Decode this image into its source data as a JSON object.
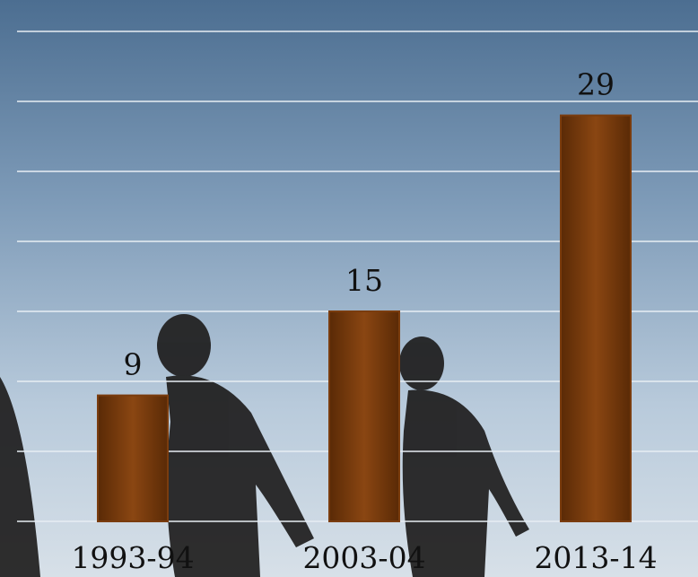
{
  "chart_data": {
    "type": "bar",
    "categories": [
      "1993-94",
      "2003-04",
      "2013-14"
    ],
    "values": [
      9,
      15,
      29
    ],
    "color": "#7a3c0e",
    "ylim": [
      0,
      35
    ],
    "yticks": [
      0,
      5,
      10,
      15,
      20,
      25,
      30,
      35
    ],
    "grid": true
  }
}
